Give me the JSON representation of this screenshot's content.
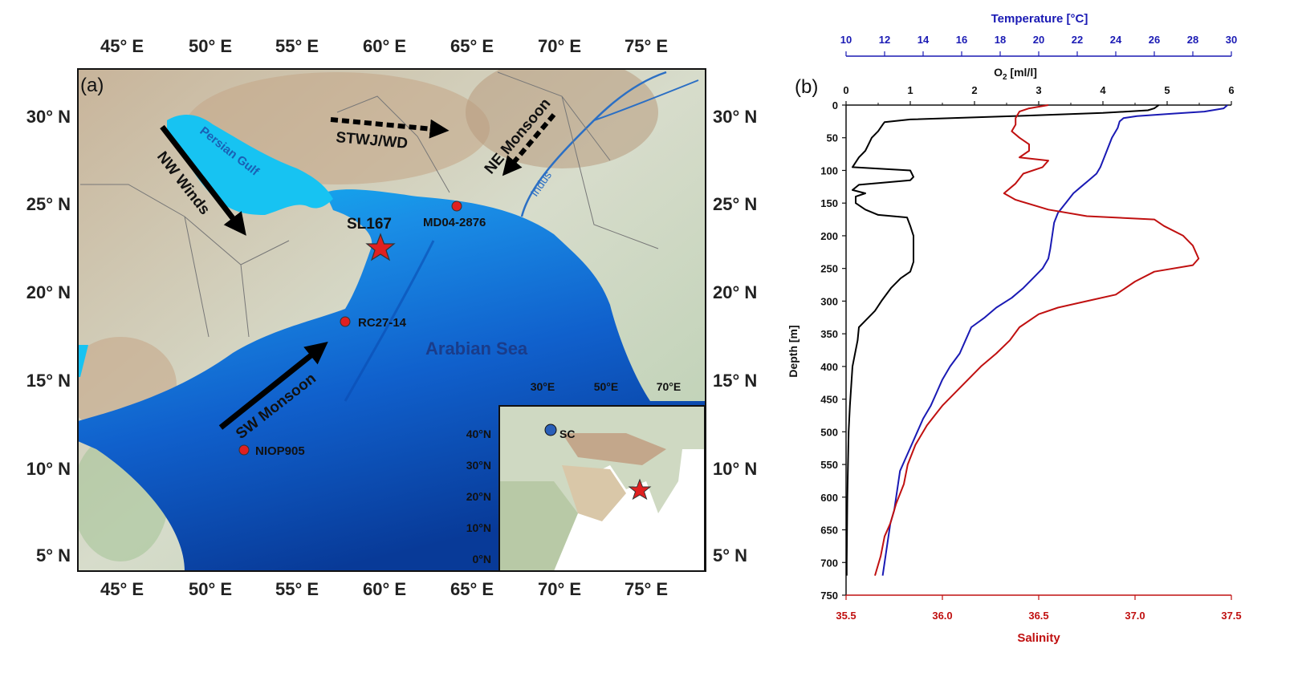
{
  "panel_a": {
    "letter": "(a)",
    "lon_ticks": [
      "45° E",
      "50° E",
      "55° E",
      "60° E",
      "65° E",
      "70° E",
      "75° E"
    ],
    "lat_ticks_left": [
      "30° N",
      "25° N",
      "20° N",
      "15° N",
      "10° N",
      "5° N"
    ],
    "lat_ticks_right": [
      "30° N",
      "25° N",
      "20° N",
      "15° N",
      "10° N",
      "5° N"
    ],
    "water_labels": {
      "gulf": "Persian Gulf",
      "sea": "Arabian Sea",
      "river": "Indus"
    },
    "winds": [
      {
        "label": "NW Winds",
        "style": "solid"
      },
      {
        "label": "SW Monsoon",
        "style": "solid"
      },
      {
        "label": "STWJ/WD",
        "style": "dashed"
      },
      {
        "label": "NE Monsoon",
        "style": "dashed"
      }
    ],
    "sites": [
      {
        "label": "SL167",
        "marker": "red-star"
      },
      {
        "label": "MD04-2876",
        "marker": "red-circle"
      },
      {
        "label": "RC27-14",
        "marker": "red-circle"
      },
      {
        "label": "NIOP905",
        "marker": "red-circle"
      }
    ],
    "inset": {
      "lon_ticks": [
        "30°E",
        "50°E",
        "70°E"
      ],
      "lat_ticks": [
        "40°N",
        "30°N",
        "20°N",
        "10°N",
        "0°N"
      ],
      "site_label": "SC",
      "colors": {
        "sc_marker": "#2a5fb8",
        "star": "#e02020"
      }
    },
    "colors": {
      "sea_shallow": "#17c3f2",
      "sea_deep": "#0a3a9c",
      "land": "#c9d6bf",
      "site": "#e02020",
      "arrow": "#000000"
    }
  },
  "panel_b": {
    "letter": "(b)",
    "temperature_axis_label": "Temperature [°C]",
    "temperature_ticks": [
      "10",
      "12",
      "14",
      "16",
      "18",
      "20",
      "22",
      "24",
      "26",
      "28",
      "30"
    ],
    "oxygen_axis_label_main": "O",
    "oxygen_axis_label_sub": "2",
    "oxygen_axis_label_unit": " [ml/l]",
    "oxygen_ticks": [
      "0",
      "1",
      "2",
      "3",
      "4",
      "5",
      "6"
    ],
    "depth_axis_label": "Depth [m]",
    "depth_ticks": [
      "0",
      "50",
      "100",
      "150",
      "200",
      "250",
      "300",
      "350",
      "400",
      "450",
      "500",
      "550",
      "600",
      "650",
      "700",
      "750"
    ],
    "salinity_axis_label": "Salinity",
    "salinity_ticks": [
      "35.5",
      "36.0",
      "36.5",
      "37.0",
      "37.5"
    ],
    "colors": {
      "oxygen": "#000000",
      "temperature": "#1a1ab4",
      "salinity": "#c01010"
    }
  },
  "chart_data": {
    "type": "line",
    "y_axis": {
      "label": "Depth [m]",
      "range": [
        0,
        750
      ],
      "inverted": true
    },
    "x_axes": [
      {
        "name": "O2 [ml/l]",
        "position": "top",
        "range": [
          0,
          6
        ]
      },
      {
        "name": "Temperature [°C]",
        "position": "top",
        "range": [
          10,
          30
        ]
      },
      {
        "name": "Salinity",
        "position": "bottom",
        "range": [
          35.5,
          37.5
        ]
      }
    ],
    "grid": false,
    "series": [
      {
        "name": "O2 [ml/l]",
        "axis": "O2 [ml/l]",
        "points": [
          [
            4.87,
            0
          ],
          [
            4.8,
            5
          ],
          [
            4.7,
            8
          ],
          [
            4.0,
            12
          ],
          [
            2.6,
            17
          ],
          [
            1.0,
            22
          ],
          [
            0.6,
            26
          ],
          [
            0.57,
            30
          ],
          [
            0.5,
            40
          ],
          [
            0.4,
            50
          ],
          [
            0.35,
            60
          ],
          [
            0.3,
            70
          ],
          [
            0.2,
            80
          ],
          [
            0.1,
            95
          ],
          [
            1.0,
            100
          ],
          [
            1.05,
            110
          ],
          [
            1.0,
            115
          ],
          [
            0.2,
            122
          ],
          [
            0.1,
            130
          ],
          [
            0.3,
            135
          ],
          [
            0.15,
            140
          ],
          [
            0.15,
            150
          ],
          [
            0.3,
            160
          ],
          [
            0.5,
            168
          ],
          [
            0.95,
            172
          ],
          [
            1.0,
            185
          ],
          [
            1.05,
            200
          ],
          [
            1.05,
            230
          ],
          [
            1.05,
            240
          ],
          [
            1.0,
            255
          ],
          [
            0.85,
            265
          ],
          [
            0.7,
            280
          ],
          [
            0.55,
            300
          ],
          [
            0.45,
            315
          ],
          [
            0.3,
            330
          ],
          [
            0.2,
            340
          ],
          [
            0.18,
            360
          ],
          [
            0.14,
            380
          ],
          [
            0.1,
            400
          ],
          [
            0.08,
            430
          ],
          [
            0.06,
            460
          ],
          [
            0.04,
            500
          ],
          [
            0.02,
            600
          ],
          [
            0.01,
            700
          ],
          [
            0.01,
            720
          ]
        ]
      },
      {
        "name": "Temperature [°C]",
        "axis": "Temperature [°C]",
        "points": [
          [
            29.8,
            0
          ],
          [
            29.6,
            5
          ],
          [
            28.6,
            10
          ],
          [
            27.0,
            13
          ],
          [
            25.1,
            17
          ],
          [
            24.4,
            20
          ],
          [
            24.2,
            25
          ],
          [
            24.1,
            35
          ],
          [
            23.8,
            50
          ],
          [
            23.6,
            65
          ],
          [
            23.4,
            80
          ],
          [
            23.2,
            95
          ],
          [
            23.0,
            105
          ],
          [
            22.6,
            115
          ],
          [
            22.2,
            125
          ],
          [
            21.8,
            135
          ],
          [
            21.4,
            150
          ],
          [
            21.0,
            165
          ],
          [
            20.8,
            180
          ],
          [
            20.7,
            200
          ],
          [
            20.6,
            220
          ],
          [
            20.5,
            235
          ],
          [
            20.2,
            250
          ],
          [
            19.7,
            265
          ],
          [
            19.2,
            280
          ],
          [
            18.6,
            295
          ],
          [
            17.8,
            310
          ],
          [
            17.2,
            325
          ],
          [
            16.5,
            340
          ],
          [
            16.2,
            360
          ],
          [
            15.9,
            380
          ],
          [
            15.4,
            400
          ],
          [
            15.0,
            420
          ],
          [
            14.7,
            440
          ],
          [
            14.4,
            460
          ],
          [
            14.0,
            480
          ],
          [
            13.7,
            500
          ],
          [
            13.4,
            520
          ],
          [
            13.1,
            540
          ],
          [
            12.8,
            560
          ],
          [
            12.7,
            580
          ],
          [
            12.6,
            600
          ],
          [
            12.5,
            620
          ],
          [
            12.3,
            640
          ],
          [
            12.2,
            660
          ],
          [
            12.1,
            680
          ],
          [
            12.0,
            700
          ],
          [
            11.9,
            720
          ]
        ]
      },
      {
        "name": "Salinity",
        "axis": "Salinity",
        "points": [
          [
            36.55,
            0
          ],
          [
            36.45,
            5
          ],
          [
            36.4,
            10
          ],
          [
            36.38,
            20
          ],
          [
            36.38,
            30
          ],
          [
            36.36,
            40
          ],
          [
            36.4,
            50
          ],
          [
            36.45,
            60
          ],
          [
            36.45,
            70
          ],
          [
            36.4,
            80
          ],
          [
            36.55,
            85
          ],
          [
            36.52,
            95
          ],
          [
            36.42,
            105
          ],
          [
            36.38,
            120
          ],
          [
            36.32,
            135
          ],
          [
            36.38,
            145
          ],
          [
            36.55,
            160
          ],
          [
            36.75,
            170
          ],
          [
            37.1,
            175
          ],
          [
            37.15,
            185
          ],
          [
            37.25,
            200
          ],
          [
            37.3,
            215
          ],
          [
            37.33,
            235
          ],
          [
            37.3,
            245
          ],
          [
            37.1,
            255
          ],
          [
            37.0,
            270
          ],
          [
            36.9,
            290
          ],
          [
            36.75,
            300
          ],
          [
            36.6,
            310
          ],
          [
            36.5,
            320
          ],
          [
            36.4,
            340
          ],
          [
            36.35,
            360
          ],
          [
            36.28,
            380
          ],
          [
            36.2,
            400
          ],
          [
            36.1,
            430
          ],
          [
            36.0,
            460
          ],
          [
            35.92,
            490
          ],
          [
            35.86,
            520
          ],
          [
            35.82,
            550
          ],
          [
            35.8,
            580
          ],
          [
            35.76,
            610
          ],
          [
            35.73,
            640
          ],
          [
            35.7,
            660
          ],
          [
            35.68,
            690
          ],
          [
            35.65,
            720
          ]
        ]
      }
    ]
  }
}
